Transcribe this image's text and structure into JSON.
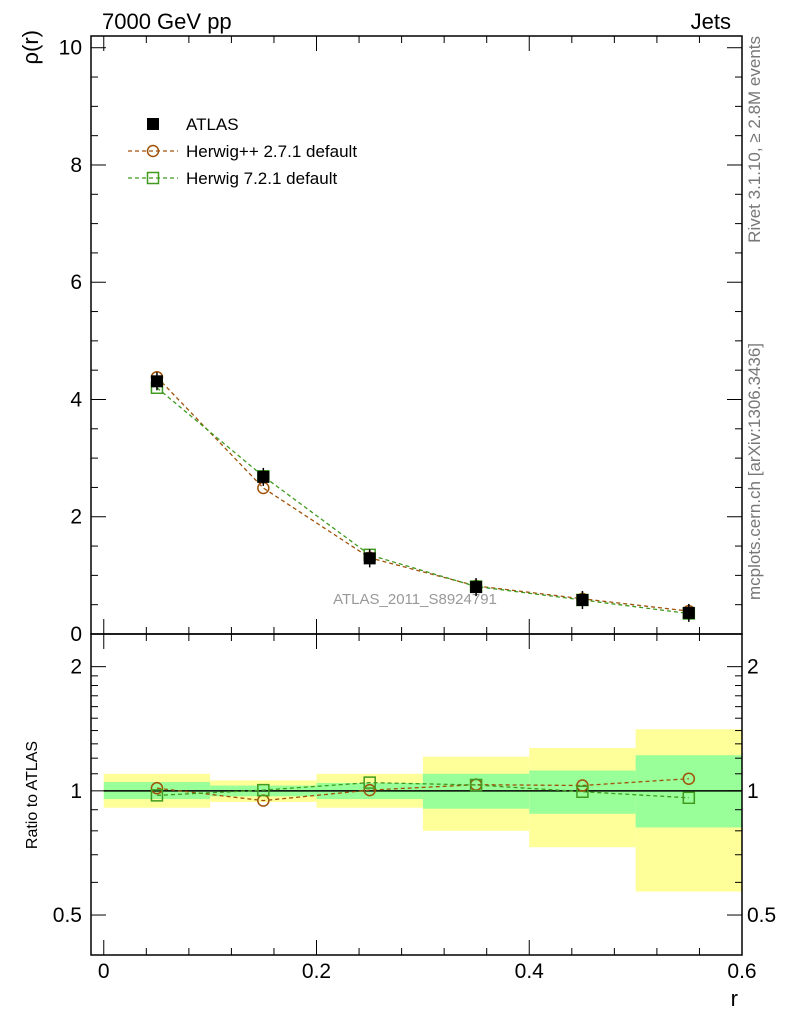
{
  "header": {
    "left": "7000 GeV pp",
    "right": "Jets"
  },
  "side_text": {
    "rivet": "Rivet 3.1.10, ≥ 2.8M events",
    "mcplots": "mcplots.cern.ch [arXiv:1306.3436]"
  },
  "watermark": "ATLAS_2011_S8924791",
  "colors": {
    "data": "#000000",
    "herwigpp": "#a0520a",
    "herwig7": "#3f9a1f",
    "band_outer": "#ffff99",
    "band_inner": "#99ff99"
  },
  "chart_data": [
    {
      "type": "line",
      "panel": "main",
      "xlabel": "",
      "ylabel": "ρ(r)",
      "xlim": [
        -0.012,
        0.6
      ],
      "ylim": [
        0,
        10.2
      ],
      "xticks": [
        0,
        0.2,
        0.4,
        0.6
      ],
      "yticks": [
        0,
        2,
        4,
        6,
        8,
        10
      ],
      "ytick_labels": [
        "0",
        "2",
        "4",
        "6",
        "8",
        "10"
      ],
      "legend_position": "top-left",
      "x": [
        0.05,
        0.15,
        0.25,
        0.35,
        0.45,
        0.55
      ],
      "series": [
        {
          "name": "ATLAS",
          "marker": "filled-square",
          "values": [
            4.31,
            2.68,
            1.29,
            0.8,
            0.58,
            0.36
          ]
        },
        {
          "name": "Herwig++ 2.7.1 default",
          "marker": "open-circle",
          "style": "dashed",
          "values": [
            4.38,
            2.49,
            1.3,
            0.82,
            0.6,
            0.39
          ]
        },
        {
          "name": "Herwig 7.2.1 default",
          "marker": "open-square",
          "style": "dashed",
          "values": [
            4.2,
            2.69,
            1.35,
            0.81,
            0.58,
            0.35
          ]
        }
      ]
    },
    {
      "type": "line",
      "panel": "ratio",
      "xlabel": "r",
      "ylabel": "Ratio to ATLAS",
      "xlim": [
        -0.012,
        0.6
      ],
      "ylim": [
        0.4,
        2.4
      ],
      "log_y": true,
      "xticks": [
        0,
        0.2,
        0.4,
        0.6
      ],
      "xtick_labels": [
        "0",
        "0.2",
        "0.4",
        "0.6"
      ],
      "yticks": [
        0.5,
        1,
        2
      ],
      "ytick_labels": [
        "0.5",
        "1",
        "2"
      ],
      "bins": [
        [
          0.0,
          0.1
        ],
        [
          0.1,
          0.2
        ],
        [
          0.2,
          0.3
        ],
        [
          0.3,
          0.4
        ],
        [
          0.4,
          0.5
        ],
        [
          0.5,
          0.6
        ]
      ],
      "band_outer": [
        [
          0.91,
          1.1
        ],
        [
          0.94,
          1.06
        ],
        [
          0.91,
          1.1
        ],
        [
          0.8,
          1.21
        ],
        [
          0.73,
          1.27
        ],
        [
          0.57,
          1.41
        ]
      ],
      "band_inner": [
        [
          0.955,
          1.05
        ],
        [
          0.97,
          1.03
        ],
        [
          0.955,
          1.045
        ],
        [
          0.905,
          1.1
        ],
        [
          0.88,
          1.12
        ],
        [
          0.815,
          1.22
        ]
      ],
      "x": [
        0.05,
        0.15,
        0.25,
        0.35,
        0.45,
        0.55
      ],
      "series": [
        {
          "name": "Herwig++ 2.7.1 default",
          "marker": "open-circle",
          "style": "dashed",
          "values": [
            1.015,
            0.947,
            1.004,
            1.035,
            1.03,
            1.07
          ]
        },
        {
          "name": "Herwig 7.2.1 default",
          "marker": "open-square",
          "style": "dashed",
          "values": [
            0.975,
            1.004,
            1.047,
            1.033,
            0.995,
            0.962
          ]
        }
      ]
    }
  ]
}
